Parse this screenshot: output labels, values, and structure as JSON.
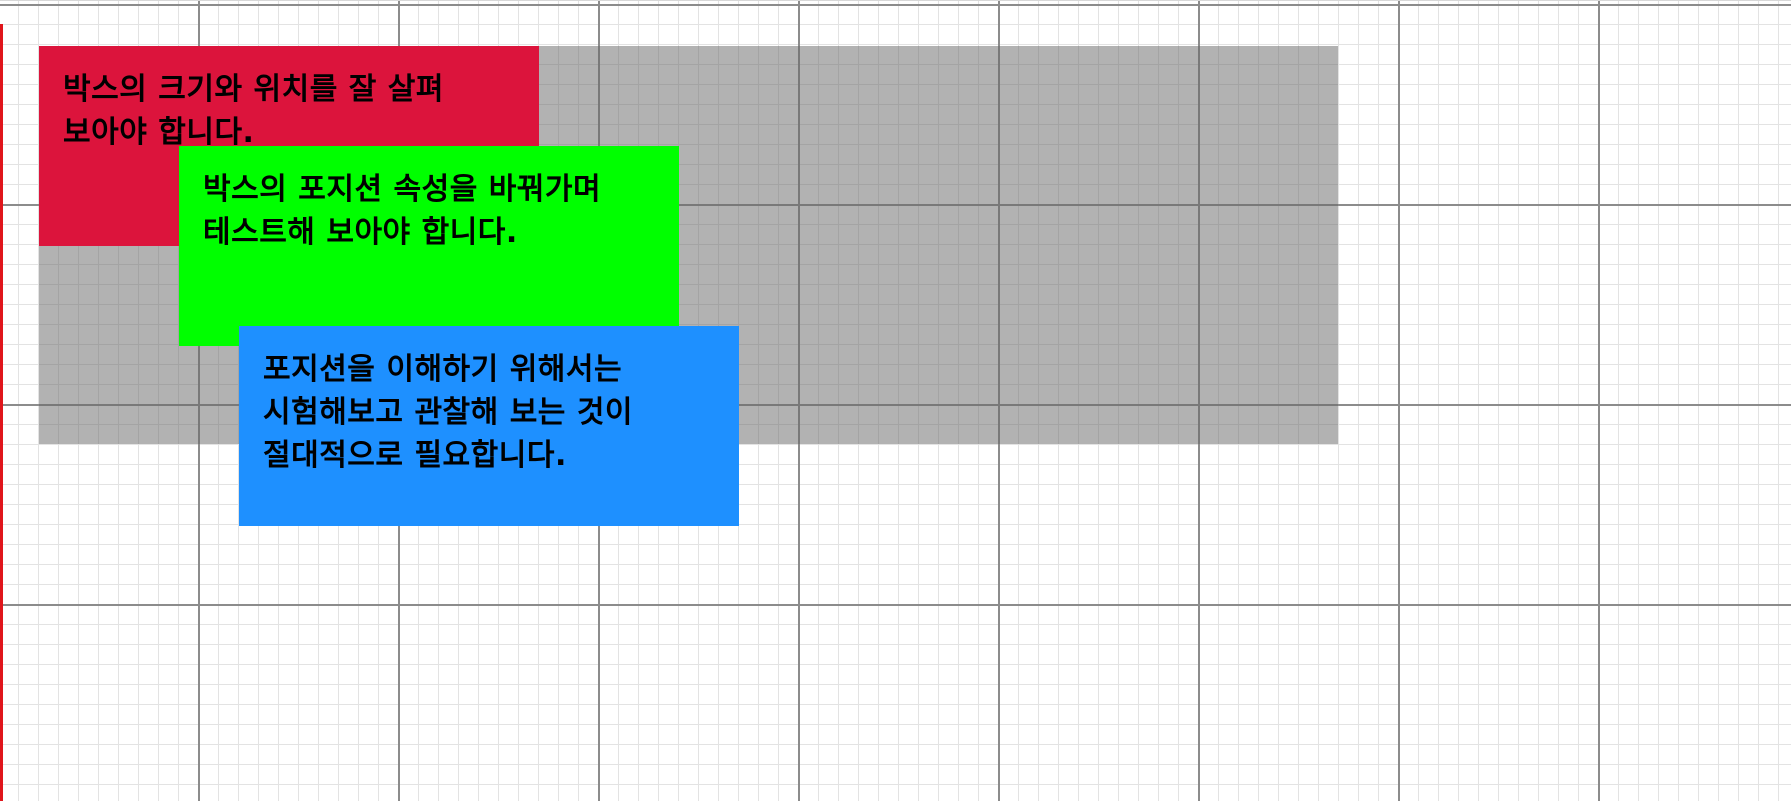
{
  "boxes": {
    "red": {
      "text": "박스의 크기와 위치를 잘 살펴 보아야 합니다.",
      "color": "#dc143c"
    },
    "green": {
      "text": "박스의 포지션 속성을 바꿔가며 테스트해 보아야 합니다.",
      "color": "#00ff00"
    },
    "blue": {
      "text": "포지션을 이해하기 위해서는 시험해보고 관찰해 보는 것이 절대적으로 필요합니다.",
      "color": "#1e90ff"
    }
  },
  "container": {
    "color": "#808080"
  },
  "grid": {
    "major_line_color": "#8c8c8c",
    "minor_line_color": "#e3e3e3"
  },
  "left_rule": {
    "color": "#e0151b"
  }
}
